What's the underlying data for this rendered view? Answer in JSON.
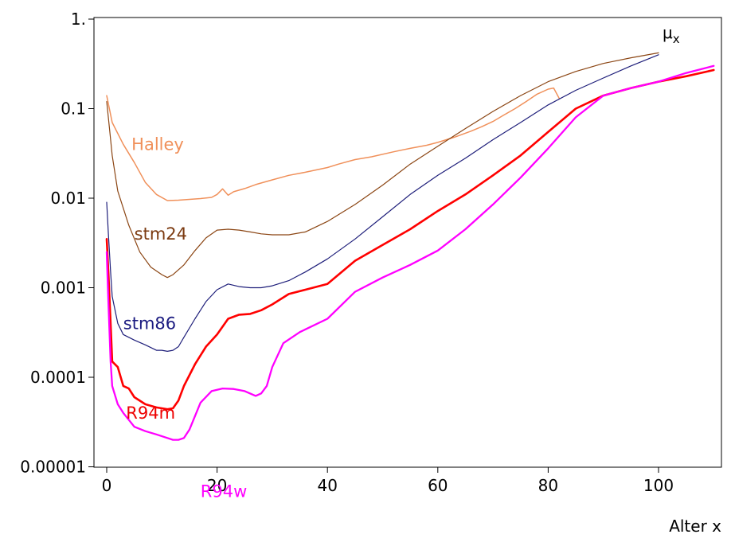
{
  "chart_data": {
    "type": "line",
    "title": "",
    "xlabel": "Alter x",
    "ylabel": "μx",
    "ylabel_main": "μ",
    "ylabel_sub": "x",
    "xlim": [
      -1,
      112
    ],
    "ylim": [
      1e-05,
      1
    ],
    "yscale": "log",
    "grid": false,
    "legend": "none (series labelled inline)",
    "x_ticks": [
      0,
      20,
      40,
      60,
      80,
      100
    ],
    "x_tick_labels": [
      "0",
      "20",
      "40",
      "60",
      "80",
      "100"
    ],
    "y_ticks": [
      1,
      0.1,
      0.01,
      0.001,
      0.0001,
      1e-05
    ],
    "y_tick_labels": [
      "1.",
      "0.1",
      "0.01",
      "0.001",
      "0.0001",
      "0.00001"
    ],
    "series": [
      {
        "name": "Halley",
        "color": "#F0905A",
        "stroke_width": 1.5,
        "x": [
          0,
          1,
          3,
          5,
          7,
          9,
          11,
          13,
          15,
          17,
          19,
          20,
          21,
          22,
          23,
          25,
          27,
          30,
          33,
          36,
          40,
          42,
          45,
          48,
          52,
          55,
          58,
          60,
          63,
          66,
          68,
          70,
          72,
          74,
          76,
          78,
          80,
          81,
          82
        ],
        "y": [
          0.14,
          0.07,
          0.04,
          0.025,
          0.015,
          0.011,
          0.0094,
          0.0095,
          0.0097,
          0.0099,
          0.0102,
          0.011,
          0.0127,
          0.0108,
          0.0118,
          0.0128,
          0.0142,
          0.016,
          0.018,
          0.0195,
          0.022,
          0.024,
          0.027,
          0.029,
          0.033,
          0.036,
          0.039,
          0.042,
          0.048,
          0.056,
          0.063,
          0.072,
          0.085,
          0.1,
          0.12,
          0.145,
          0.165,
          0.17,
          0.13
        ]
      },
      {
        "name": "stm24",
        "color": "#8B4513",
        "stroke_width": 1.2,
        "x": [
          0,
          0.5,
          1,
          2,
          4,
          6,
          8,
          10,
          11,
          12,
          14,
          16,
          18,
          20,
          22,
          24,
          26,
          28,
          30,
          33,
          36,
          40,
          45,
          50,
          55,
          60,
          65,
          70,
          75,
          80,
          85,
          90,
          95,
          100
        ],
        "y": [
          0.12,
          0.06,
          0.03,
          0.012,
          0.005,
          0.0025,
          0.0017,
          0.0014,
          0.0013,
          0.0014,
          0.0018,
          0.0026,
          0.0036,
          0.0044,
          0.0045,
          0.0044,
          0.0042,
          0.004,
          0.0039,
          0.0039,
          0.0042,
          0.0055,
          0.0085,
          0.014,
          0.024,
          0.038,
          0.06,
          0.093,
          0.14,
          0.2,
          0.26,
          0.32,
          0.37,
          0.42
        ]
      },
      {
        "name": "stm86",
        "color": "#1E1E7A",
        "stroke_width": 1.2,
        "x": [
          0,
          0.3,
          0.7,
          1,
          2,
          3,
          5,
          7,
          9,
          10,
          11,
          12,
          13,
          14,
          16,
          18,
          20,
          22,
          24,
          26,
          28,
          30,
          33,
          36,
          40,
          45,
          50,
          55,
          60,
          65,
          70,
          75,
          80,
          85,
          90,
          95,
          100
        ],
        "y": [
          0.009,
          0.004,
          0.0015,
          0.0008,
          0.0004,
          0.0003,
          0.00026,
          0.00023,
          0.0002,
          0.0002,
          0.000195,
          0.0002,
          0.00022,
          0.00028,
          0.00045,
          0.0007,
          0.00095,
          0.0011,
          0.00103,
          0.001,
          0.001,
          0.00105,
          0.0012,
          0.0015,
          0.0021,
          0.0035,
          0.0062,
          0.011,
          0.018,
          0.028,
          0.045,
          0.07,
          0.11,
          0.16,
          0.22,
          0.3,
          0.4
        ]
      },
      {
        "name": "R94m",
        "color": "#FF0000",
        "stroke_width": 2.6,
        "x": [
          0,
          0.3,
          0.7,
          1,
          2,
          3,
          4,
          5,
          7,
          9,
          11,
          12,
          13,
          14,
          16,
          18,
          20,
          22,
          24,
          26,
          28,
          30,
          33,
          36,
          40,
          45,
          50,
          55,
          60,
          65,
          70,
          75,
          80,
          85,
          90,
          95,
          100,
          105,
          110
        ],
        "y": [
          0.0035,
          0.0015,
          0.0004,
          0.00015,
          0.00013,
          8e-05,
          7.5e-05,
          6e-05,
          5e-05,
          4.6e-05,
          4.4e-05,
          4.5e-05,
          5.5e-05,
          8e-05,
          0.00014,
          0.00022,
          0.0003,
          0.00045,
          0.0005,
          0.00051,
          0.00056,
          0.00065,
          0.00085,
          0.00095,
          0.0011,
          0.002,
          0.003,
          0.0045,
          0.0072,
          0.011,
          0.018,
          0.03,
          0.055,
          0.1,
          0.14,
          0.17,
          0.2,
          0.23,
          0.27
        ]
      },
      {
        "name": "R94w",
        "color": "#FF00FF",
        "stroke_width": 2.3,
        "x": [
          0,
          0.3,
          0.7,
          1,
          2,
          3,
          5,
          7,
          9,
          11,
          12,
          13,
          14,
          15,
          17,
          19,
          21,
          23,
          25,
          27,
          28,
          29,
          30,
          32,
          35,
          40,
          45,
          50,
          55,
          60,
          65,
          70,
          75,
          80,
          85,
          90,
          95,
          100,
          105,
          110
        ],
        "y": [
          0.0025,
          0.0007,
          0.00015,
          8e-05,
          5e-05,
          4e-05,
          2.8e-05,
          2.5e-05,
          2.3e-05,
          2.1e-05,
          2e-05,
          2e-05,
          2.1e-05,
          2.6e-05,
          5.2e-05,
          7e-05,
          7.5e-05,
          7.4e-05,
          7e-05,
          6.2e-05,
          6.6e-05,
          8e-05,
          0.00013,
          0.00024,
          0.00032,
          0.00045,
          0.0009,
          0.0013,
          0.0018,
          0.0026,
          0.0045,
          0.0085,
          0.017,
          0.036,
          0.08,
          0.14,
          0.17,
          0.2,
          0.25,
          0.3
        ]
      }
    ],
    "series_labels": [
      {
        "text": "Halley",
        "color": "#F0905A",
        "anchor_x": 4.5,
        "anchor_y": 0.04
      },
      {
        "text": "stm24",
        "color": "#7B3A10",
        "anchor_x": 5,
        "anchor_y": 0.004
      },
      {
        "text": "stm86",
        "color": "#1A1A80",
        "anchor_x": 3,
        "anchor_y": 0.0004
      },
      {
        "text": "R94m",
        "color": "#EE0000",
        "anchor_x": 3.5,
        "anchor_y": 4e-05
      },
      {
        "text": "R94w",
        "color": "#FF00FF",
        "anchor_x": 17,
        "anchor_y": 5.3e-06
      }
    ]
  }
}
